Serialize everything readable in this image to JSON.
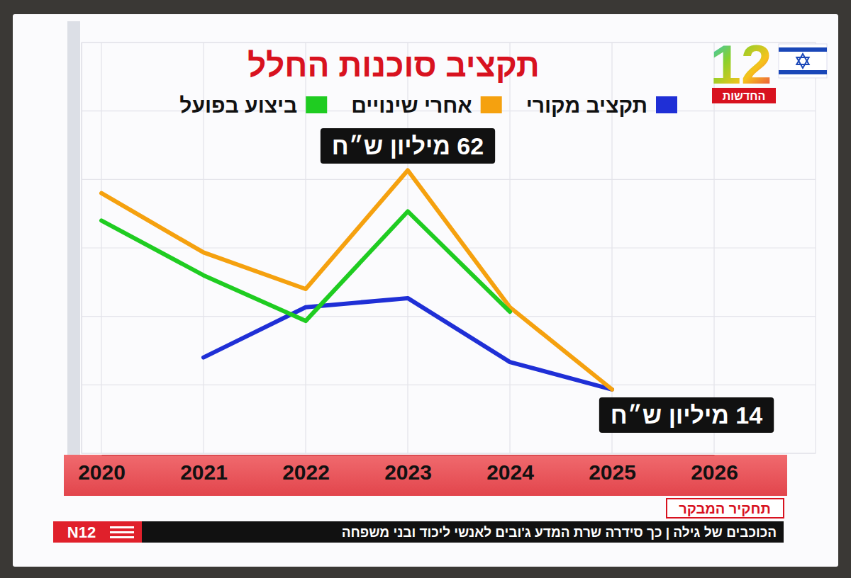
{
  "chart_data": {
    "type": "line",
    "title": "תקציב סוכנות החלל",
    "categories": [
      "2020",
      "2021",
      "2022",
      "2023",
      "2024",
      "2025",
      "2026"
    ],
    "series": [
      {
        "name": "תקציב מקורי",
        "color": "#1f2fd6",
        "values": [
          null,
          21,
          32,
          34,
          20,
          14,
          null
        ]
      },
      {
        "name": "אחרי שינויים",
        "color": "#f5a10f",
        "values": [
          57,
          44,
          36,
          62,
          32,
          14,
          null
        ]
      },
      {
        "name": "ביצוע בפועל",
        "color": "#1fcc21",
        "values": [
          51,
          39,
          29,
          53,
          31,
          null,
          null
        ]
      }
    ],
    "ylim": [
      0,
      90
    ],
    "yticks": [
      0,
      15,
      30,
      45,
      60,
      75,
      90
    ],
    "grid": true,
    "legend": "top",
    "tick_labels": "x",
    "annotations": [
      "62 מיליון ש״ח",
      "14 מיליון ש״ח"
    ]
  },
  "broadcast": {
    "channel_number": "12",
    "channel_name": "החדשות",
    "ticker_logo": "N12",
    "segment_tag": "תחקיר המבקר",
    "ticker": "הכוכבים של גילה | כך סידרה שרת המדע ג'ובים לאנשי ליכוד ובני משפחה"
  }
}
